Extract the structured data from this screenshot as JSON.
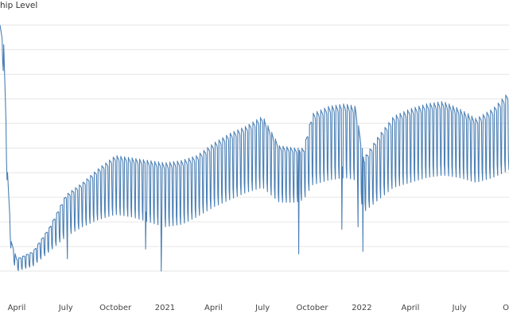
{
  "chart_data": {
    "type": "line",
    "title": "hip Level",
    "xlabel": "",
    "ylabel": "",
    "grid": "horizontal",
    "legend": "none",
    "line_color": "#4a7fb5",
    "x_tick_labels": [
      "April",
      "July",
      "October",
      "2021",
      "April",
      "July",
      "October",
      "2022",
      "April",
      "July",
      "O"
    ],
    "x_ticks": [
      "2020-04-01",
      "2020-07-01",
      "2020-10-01",
      "2021-01-01",
      "2021-04-01",
      "2021-07-01",
      "2021-10-01",
      "2022-01-01",
      "2022-04-01",
      "2022-07-01",
      "2022-10-01"
    ],
    "xlim": [
      "2020-03-01",
      "2022-10-01"
    ],
    "ylim": [
      0,
      11.5
    ],
    "weekly_peak_series": {
      "x": [
        "2020-03-01",
        "2020-03-08",
        "2020-03-15",
        "2020-03-22",
        "2020-04-01",
        "2020-05-01",
        "2020-06-01",
        "2020-07-01",
        "2020-08-01",
        "2020-09-01",
        "2020-10-01",
        "2020-11-01",
        "2020-12-01",
        "2021-01-01",
        "2021-02-01",
        "2021-03-01",
        "2021-04-01",
        "2021-05-01",
        "2021-06-01",
        "2021-07-01",
        "2021-08-01",
        "2021-09-01",
        "2021-09-15",
        "2021-10-01",
        "2021-11-01",
        "2021-12-01",
        "2021-12-20",
        "2022-01-05",
        "2022-02-01",
        "2022-03-01",
        "2022-04-01",
        "2022-05-01",
        "2022-06-01",
        "2022-07-01",
        "2022-08-01",
        "2022-09-01",
        "2022-10-01"
      ],
      "y": [
        11.0,
        10.2,
        5.0,
        2.2,
        1.5,
        1.8,
        2.8,
        4.1,
        4.6,
        5.2,
        5.7,
        5.6,
        5.5,
        5.4,
        5.5,
        5.7,
        6.2,
        6.6,
        6.9,
        7.3,
        6.1,
        6.0,
        6.0,
        7.4,
        7.7,
        7.8,
        7.7,
        5.6,
        6.5,
        7.3,
        7.6,
        7.8,
        7.9,
        7.6,
        7.2,
        7.6,
        8.3
      ]
    },
    "weekly_trough_series": {
      "x": [
        "2020-03-01",
        "2020-03-08",
        "2020-03-15",
        "2020-03-22",
        "2020-04-01",
        "2020-05-01",
        "2020-06-01",
        "2020-07-01",
        "2020-08-01",
        "2020-09-01",
        "2020-10-01",
        "2020-11-01",
        "2020-12-01",
        "2021-01-01",
        "2021-02-01",
        "2021-03-01",
        "2021-04-01",
        "2021-05-01",
        "2021-06-01",
        "2021-07-01",
        "2021-08-01",
        "2021-09-01",
        "2021-09-15",
        "2021-10-01",
        "2021-11-01",
        "2021-12-01",
        "2021-12-20",
        "2022-01-05",
        "2022-02-01",
        "2022-03-01",
        "2022-04-01",
        "2022-05-01",
        "2022-06-01",
        "2022-07-01",
        "2022-08-01",
        "2022-09-01",
        "2022-10-01"
      ],
      "y": [
        10.0,
        9.0,
        4.0,
        1.6,
        1.0,
        1.2,
        1.8,
        2.4,
        2.8,
        3.1,
        3.3,
        3.2,
        3.0,
        2.8,
        2.9,
        3.2,
        3.6,
        3.9,
        4.2,
        4.4,
        3.8,
        3.8,
        3.9,
        4.5,
        4.7,
        4.8,
        4.7,
        3.4,
        3.9,
        4.4,
        4.6,
        4.8,
        4.9,
        4.8,
        4.6,
        4.8,
        5.1
      ]
    },
    "notable_dips": [
      {
        "x": "2021-09-06",
        "y": 1.7
      },
      {
        "x": "2021-11-25",
        "y": 2.7
      },
      {
        "x": "2020-11-26",
        "y": 1.9
      },
      {
        "x": "2020-12-25",
        "y": 1.0
      },
      {
        "x": "2021-12-25",
        "y": 2.8
      },
      {
        "x": "2022-01-03",
        "y": 1.8
      },
      {
        "x": "2020-07-04",
        "y": 1.5
      }
    ]
  }
}
